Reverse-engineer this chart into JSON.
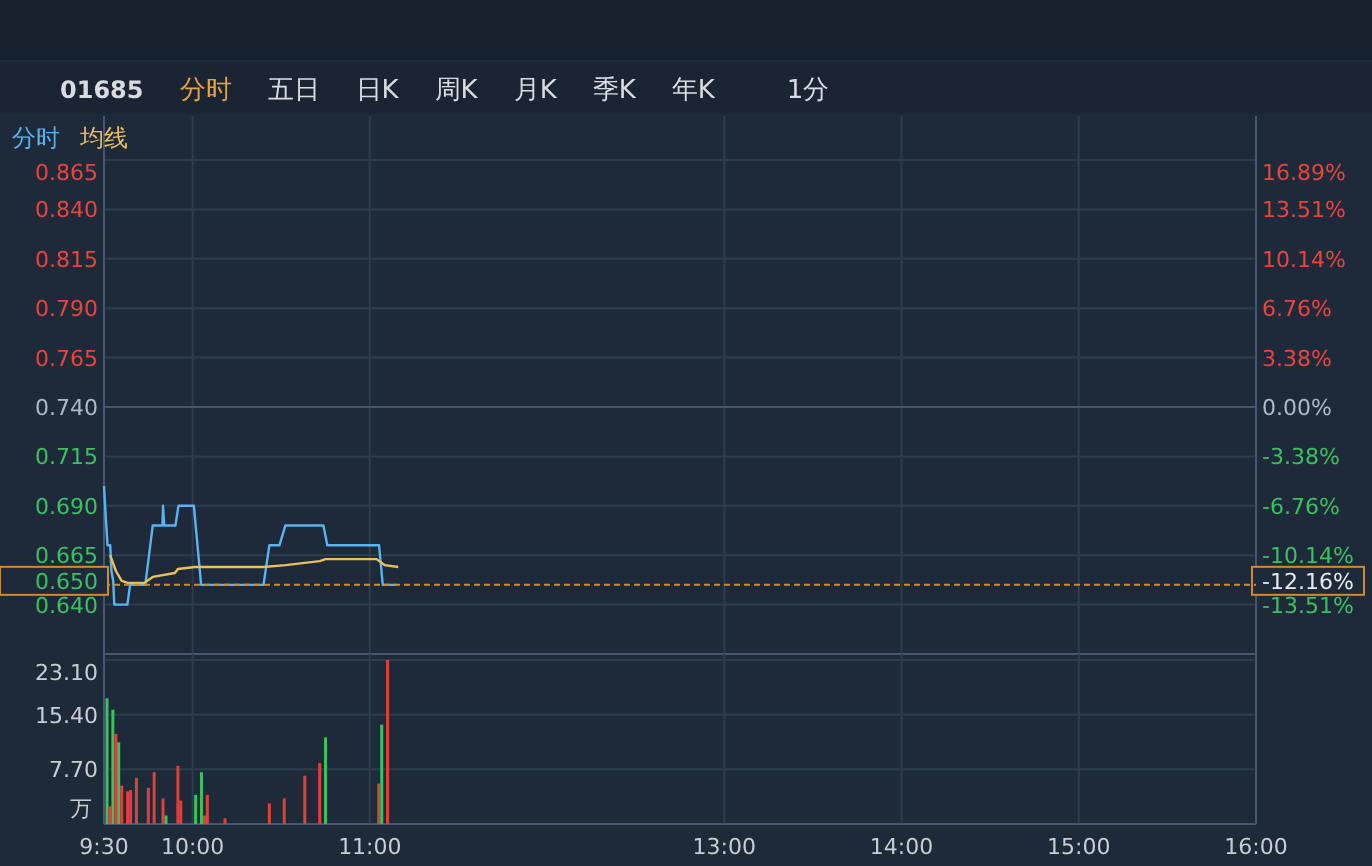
{
  "chart_data": [
    {
      "type": "line",
      "annotations": [
        "01685",
        "分时",
        "五日",
        "日K",
        "周K",
        "月K",
        "季K",
        "年K",
        "1分"
      ],
      "xlim": [
        9.5,
        16
      ],
      "xticks": [
        9.5,
        10,
        11,
        13,
        14,
        15,
        16
      ],
      "ylim": [
        0.615,
        0.865
      ],
      "yticks": [
        {
          "value": 0.865,
          "label": "0.865"
        },
        {
          "value": 0.84,
          "label": "0.840"
        },
        {
          "value": 0.815,
          "label": "0.815"
        },
        {
          "value": 0.79,
          "label": "0.790"
        },
        {
          "value": 0.765,
          "label": "0.765"
        },
        {
          "value": 0.74,
          "label": "0.740"
        },
        {
          "value": 0.715,
          "label": "0.715"
        },
        {
          "value": 0.69,
          "label": "0.690"
        },
        {
          "value": 0.665,
          "label": "0.665"
        },
        {
          "value": 0.64,
          "label": "0.640"
        }
      ],
      "y2lim": [
        -16.89,
        16.89
      ],
      "y2ticks": [
        {
          "value": 16.89,
          "label": "16.89%"
        },
        {
          "value": 13.51,
          "label": "13.51%"
        },
        {
          "value": 10.14,
          "label": "10.14%"
        },
        {
          "value": 6.76,
          "label": "6.76%"
        },
        {
          "value": 3.38,
          "label": "3.38%"
        },
        {
          "value": 0,
          "label": "0.00%"
        },
        {
          "value": -3.38,
          "label": "-3.38%"
        },
        {
          "value": -6.76,
          "label": "-6.76%"
        },
        {
          "value": -10.14,
          "label": "-10.14%"
        },
        {
          "value": -12.16,
          "label": "-12.16%"
        },
        {
          "value": -13.51,
          "label": "-13.51%"
        }
      ],
      "tick_labels": "y",
      "grid": true,
      "legend": "top left",
      "ref_lines": [
        {
          "axis": "y",
          "value": 0.65,
          "label": "0.650",
          "color": "#d08a30",
          "line_style": "dashed"
        }
      ],
      "series": [
        {
          "name": "分时",
          "color": "#5ab4f0",
          "x": [
            9.5,
            9.51,
            9.52,
            9.535,
            9.542,
            9.552,
            9.558,
            9.583,
            9.632,
            9.647,
            9.733,
            9.775,
            9.83,
            9.833,
            9.84,
            9.903,
            9.92,
            10.007,
            10.048,
            10.4,
            10.433,
            10.49,
            10.523,
            10.738,
            10.76,
            11.052,
            11.073,
            11.153
          ],
          "values": [
            0.7,
            0.684,
            0.67,
            0.67,
            0.657,
            0.652,
            0.64,
            0.64,
            0.64,
            0.65,
            0.65,
            0.68,
            0.68,
            0.69,
            0.68,
            0.68,
            0.69,
            0.69,
            0.65,
            0.65,
            0.67,
            0.67,
            0.68,
            0.68,
            0.67,
            0.67,
            0.65,
            0.65
          ]
        },
        {
          "name": "均线",
          "color": "#e8c060",
          "x": [
            9.535,
            9.567,
            9.6,
            9.633,
            9.728,
            9.775,
            9.9,
            9.917,
            10.013,
            10.4,
            10.525,
            10.717,
            10.75,
            11.038,
            11.083,
            11.16
          ],
          "values": [
            0.665,
            0.657,
            0.652,
            0.651,
            0.651,
            0.654,
            0.656,
            0.658,
            0.659,
            0.659,
            0.66,
            0.662,
            0.663,
            0.663,
            0.66,
            0.659
          ]
        }
      ]
    },
    {
      "type": "bar",
      "ylabel": "万",
      "xlim": [
        9.5,
        16
      ],
      "xticks": [
        {
          "value": 9.5,
          "label": "9:30"
        },
        {
          "value": 10,
          "label": "10:00"
        },
        {
          "value": 11,
          "label": "11:00"
        },
        {
          "value": 13,
          "label": "13:00"
        },
        {
          "value": 14,
          "label": "14:00"
        },
        {
          "value": 15,
          "label": "15:00"
        },
        {
          "value": 16,
          "label": "16:00"
        }
      ],
      "ylim": [
        0,
        23.1
      ],
      "yticks": [
        {
          "value": 7.7,
          "label": "7.70"
        },
        {
          "value": 15.4,
          "label": "15.40"
        },
        {
          "value": 23.1,
          "label": "23.10"
        }
      ],
      "grid": true,
      "x": [
        9.517,
        9.533,
        9.55,
        9.567,
        9.583,
        9.6,
        9.633,
        9.65,
        9.683,
        9.75,
        9.783,
        9.833,
        9.85,
        9.917,
        9.933,
        10.017,
        10.05,
        10.067,
        10.083,
        10.183,
        10.433,
        10.517,
        10.633,
        10.717,
        10.75,
        11.05,
        11.067,
        11.1
      ],
      "values": [
        17.7,
        2.5,
        16.1,
        12.7,
        11.5,
        5.4,
        4.6,
        4.8,
        6.5,
        5.1,
        7.3,
        3.6,
        1.2,
        8.2,
        3.3,
        4.1,
        7.3,
        1.2,
        4.1,
        0.8,
        2.9,
        3.6,
        6.8,
        8.6,
        12.2,
        5.7,
        14.0,
        23.1
      ],
      "colors": [
        "#3cc060",
        "#e0403a",
        "#3cc060",
        "#e0403a",
        "#3cc060",
        "#e0403a",
        "#e0403a",
        "#e0403a",
        "#e0403a",
        "#e0403a",
        "#e0403a",
        "#e0403a",
        "#3cc060",
        "#e0403a",
        "#e0403a",
        "#3cc060",
        "#3cc060",
        "#e0403a",
        "#e0403a",
        "#e0403a",
        "#e0403a",
        "#e0403a",
        "#e0403a",
        "#e0403a",
        "#3cc060",
        "#e0403a",
        "#3cc060",
        "#e0403a"
      ]
    }
  ]
}
